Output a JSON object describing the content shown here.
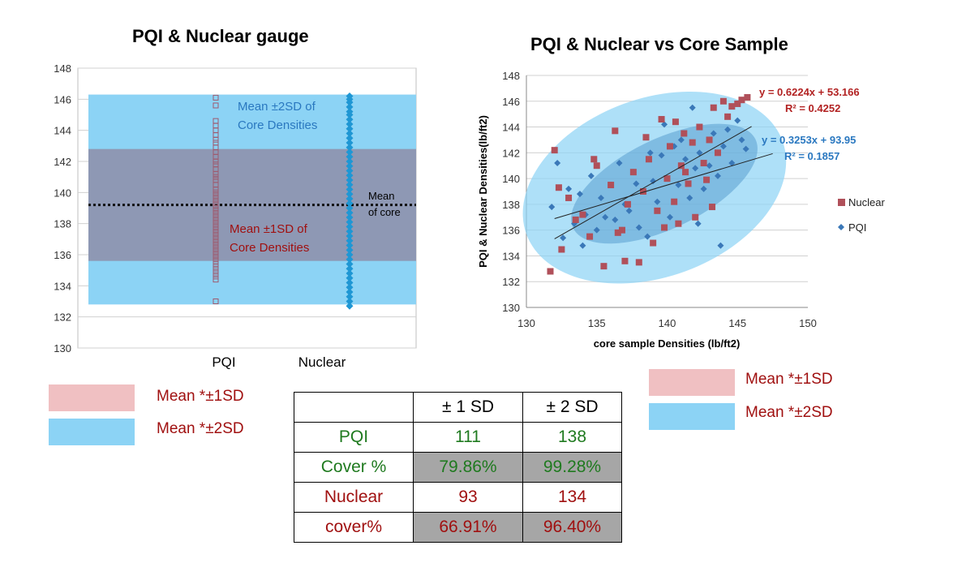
{
  "left_title": "PQI & Nuclear gauge",
  "right_title": "PQI & Nuclear vs Core Sample",
  "chart_data": [
    {
      "type": "scatter",
      "title": "PQI & Nuclear gauge",
      "categories": [
        "PQI",
        "Nuclear"
      ],
      "ylim": [
        130,
        148
      ],
      "yticks": [
        130,
        132,
        134,
        136,
        138,
        140,
        142,
        144,
        146,
        148
      ],
      "mean_of_core": 139.2,
      "band_1sd": [
        135.6,
        142.8
      ],
      "band_2sd": [
        132.8,
        146.3
      ],
      "annotations": {
        "sd2": [
          "Mean  ±2SD of",
          "Core Densities"
        ],
        "sd1": [
          "Mean  ±1SD of",
          "Core Densities"
        ],
        "mean": [
          "Mean",
          "of core"
        ]
      },
      "series": [
        {
          "name": "PQI",
          "marker": "hollow-square",
          "color": "#9e5a6e",
          "y": [
            146.1,
            145.6,
            144.6,
            144.3,
            144.0,
            143.7,
            143.4,
            143.2,
            142.9,
            142.6,
            142.3,
            142.0,
            141.8,
            141.5,
            141.2,
            141.0,
            140.8,
            140.5,
            140.2,
            140.0,
            139.8,
            139.6,
            139.4,
            139.2,
            139.0,
            138.8,
            138.6,
            138.4,
            138.2,
            138.0,
            137.8,
            137.6,
            137.4,
            137.2,
            137.0,
            136.8,
            136.6,
            136.4,
            136.2,
            136.0,
            135.8,
            135.6,
            135.4,
            135.2,
            135.0,
            134.8,
            134.6,
            134.4,
            133.0
          ]
        },
        {
          "name": "Nuclear",
          "marker": "diamond",
          "color": "#1f97d4",
          "y": [
            146.2,
            146.0,
            145.8,
            145.5,
            145.2,
            145.0,
            144.7,
            144.4,
            144.1,
            143.8,
            143.5,
            143.2,
            142.9,
            142.6,
            142.3,
            142.0,
            141.7,
            141.4,
            141.1,
            140.8,
            140.5,
            140.2,
            139.9,
            139.6,
            139.3,
            139.0,
            138.7,
            138.4,
            138.1,
            137.8,
            137.5,
            137.2,
            136.9,
            136.6,
            136.3,
            136.0,
            135.7,
            135.4,
            135.1,
            134.8,
            134.5,
            134.2,
            133.9,
            133.6,
            133.3,
            133.0,
            132.7
          ]
        }
      ]
    },
    {
      "type": "scatter",
      "title": "PQI & Nuclear vs Core Sample",
      "xlabel": "core sample Densities (lb/ft2)",
      "ylabel": "PQI & Nuclear Densities(lb/ft2)",
      "xlim": [
        130,
        150
      ],
      "ylim": [
        130,
        148
      ],
      "xticks": [
        130,
        135,
        140,
        145,
        150
      ],
      "yticks": [
        130,
        132,
        134,
        136,
        138,
        140,
        142,
        144,
        146,
        148
      ],
      "legend_position": "right",
      "series": [
        {
          "name": "Nuclear",
          "marker": "square",
          "color": "#b0505a",
          "trend": {
            "slope": 0.6224,
            "intercept": 53.166,
            "equation": "y = 0.6224x + 53.166",
            "r2": "R² = 0.4252"
          },
          "x": [
            131.7,
            132.0,
            132.5,
            133.0,
            133.5,
            134.0,
            134.5,
            135.0,
            135.5,
            136.0,
            136.3,
            136.8,
            137.2,
            137.6,
            138.0,
            138.3,
            138.7,
            139.0,
            139.3,
            139.6,
            140.0,
            140.2,
            140.5,
            140.8,
            141.0,
            141.2,
            141.5,
            141.8,
            142.0,
            142.3,
            142.6,
            143.0,
            143.3,
            143.6,
            144.0,
            144.3,
            144.6,
            145.0,
            145.3,
            145.7,
            132.3,
            134.8,
            136.5,
            138.5,
            141.3,
            143.2,
            137.0,
            139.8,
            142.8,
            140.6
          ],
          "y": [
            132.8,
            142.2,
            134.5,
            138.5,
            136.8,
            137.2,
            135.5,
            141.0,
            133.2,
            139.5,
            143.7,
            136.0,
            138.0,
            140.5,
            133.5,
            139.0,
            141.5,
            135.0,
            137.5,
            144.6,
            140.0,
            142.5,
            138.2,
            136.5,
            141.0,
            143.5,
            139.6,
            142.8,
            137.0,
            144.0,
            141.2,
            143.0,
            145.5,
            142.0,
            146.0,
            144.8,
            145.6,
            145.8,
            146.1,
            146.3,
            139.3,
            141.5,
            135.8,
            143.2,
            140.5,
            137.8,
            133.6,
            136.2,
            139.9,
            144.4
          ]
        },
        {
          "name": "PQI",
          "marker": "diamond",
          "color": "#3a78b8",
          "trend": {
            "slope": 0.3253,
            "intercept": 93.95,
            "equation": "y = 0.3253x + 93.95",
            "r2": "R² = 0.1857"
          },
          "x": [
            131.8,
            132.2,
            132.6,
            133.0,
            133.4,
            133.8,
            134.2,
            134.6,
            135.0,
            135.3,
            135.6,
            136.0,
            136.3,
            136.6,
            137.0,
            137.3,
            137.6,
            138.0,
            138.3,
            138.6,
            139.0,
            139.3,
            139.6,
            140.0,
            140.2,
            140.5,
            140.8,
            141.0,
            141.3,
            141.6,
            142.0,
            142.3,
            142.6,
            143.0,
            143.3,
            143.6,
            144.0,
            144.3,
            144.6,
            145.0,
            145.3,
            145.6,
            134.0,
            136.8,
            138.8,
            141.8,
            143.8,
            137.8,
            139.8,
            142.2
          ],
          "y": [
            137.8,
            141.2,
            135.4,
            139.2,
            136.5,
            138.8,
            137.2,
            140.2,
            136.0,
            138.5,
            137.0,
            139.5,
            136.8,
            141.2,
            138.0,
            137.5,
            140.5,
            136.2,
            139.0,
            135.5,
            139.8,
            138.2,
            141.8,
            140.0,
            137.0,
            142.5,
            139.5,
            143.0,
            141.5,
            138.5,
            140.8,
            142.0,
            139.2,
            141.0,
            143.5,
            140.2,
            142.5,
            143.8,
            141.2,
            144.5,
            143.0,
            142.3,
            134.8,
            136.0,
            142.0,
            145.5,
            134.8,
            139.6,
            144.2,
            136.5
          ]
        }
      ]
    }
  ],
  "left_legend": [
    {
      "label": "Mean *±1SD",
      "color": "#f0c0c2"
    },
    {
      "label": "Mean *±2SD",
      "color": "#8cd3f5"
    }
  ],
  "right_legend": [
    {
      "label": "Mean *±1SD",
      "color": "#f0c0c2"
    },
    {
      "label": "Mean *±2SD",
      "color": "#8cd3f5"
    }
  ],
  "table": {
    "headers": [
      "",
      "± 1 SD",
      "± 2 SD"
    ],
    "rows": [
      {
        "label": "PQI",
        "sd1": "111",
        "sd2": "138",
        "color": "green",
        "shaded": false
      },
      {
        "label": "Cover %",
        "sd1": "79.86%",
        "sd2": "99.28%",
        "color": "green",
        "shaded": true
      },
      {
        "label": "Nuclear",
        "sd1": "93",
        "sd2": "134",
        "color": "red",
        "shaded": false
      },
      {
        "label": "cover%",
        "sd1": "66.91%",
        "sd2": "96.40%",
        "color": "red",
        "shaded": true
      }
    ]
  }
}
